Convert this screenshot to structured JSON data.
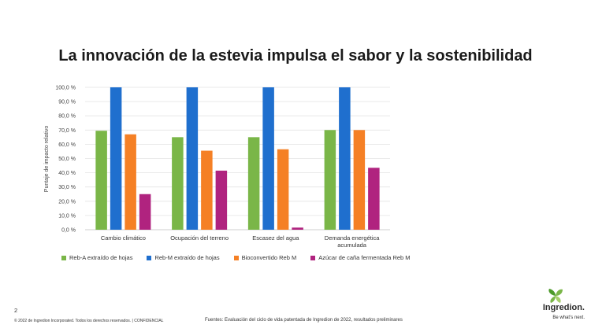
{
  "title": "La innovación de la estevia impulsa el sabor y la sostenibilidad",
  "chart_data": {
    "type": "bar",
    "categories": [
      "Cambio climático",
      "Ocupación del terreno",
      "Escasez del agua",
      "Demanda energética acumulada"
    ],
    "category_lines": [
      [
        "Cambio climático"
      ],
      [
        "Ocupación del terreno"
      ],
      [
        "Escasez del agua"
      ],
      [
        "Demanda energética",
        "acumulada"
      ]
    ],
    "series": [
      {
        "name": "Reb-A extraído de hojas",
        "color": "#7ab648",
        "values": [
          69.5,
          65.0,
          65.0,
          70.0
        ]
      },
      {
        "name": "Reb-M extraído de hojas",
        "color": "#1f6fce",
        "values": [
          100.0,
          100.0,
          100.0,
          100.0
        ]
      },
      {
        "name": "Bioconvertido Reb M",
        "color": "#f58025",
        "values": [
          67.0,
          55.5,
          56.5,
          70.0
        ]
      },
      {
        "name": "Azúcar de caña fermentada Reb M",
        "color": "#b0237f",
        "values": [
          25.0,
          41.5,
          1.5,
          43.5
        ]
      }
    ],
    "ylabel": "Puntaje de impacto relativo",
    "xlabel": "",
    "ylim": [
      0,
      100
    ],
    "yticks": [
      "0,0 %",
      "10,0 %",
      "20,0 %",
      "30,0 %",
      "40,0 %",
      "50,0 %",
      "60,0 %",
      "70,0 %",
      "80,0 %",
      "90,0 %",
      "100,0 %"
    ],
    "ytick_values": [
      0,
      10,
      20,
      30,
      40,
      50,
      60,
      70,
      80,
      90,
      100
    ],
    "grid": true,
    "legend": "bottom"
  },
  "footer": {
    "page_number": "2",
    "copyright": "© 2022 de Ingredion Incorporated. Todos los derechos reservados.  |  CONFIDENCIAL",
    "source": "Fuentes: Evaluación del ciclo de vida patentada de Ingredion de 2022, resultados preliminares"
  },
  "logo": {
    "name": "Ingredion.",
    "tagline": "Be what’s next.",
    "colors": [
      "#7ab648",
      "#4d9a2a",
      "#a6cf6a"
    ]
  }
}
